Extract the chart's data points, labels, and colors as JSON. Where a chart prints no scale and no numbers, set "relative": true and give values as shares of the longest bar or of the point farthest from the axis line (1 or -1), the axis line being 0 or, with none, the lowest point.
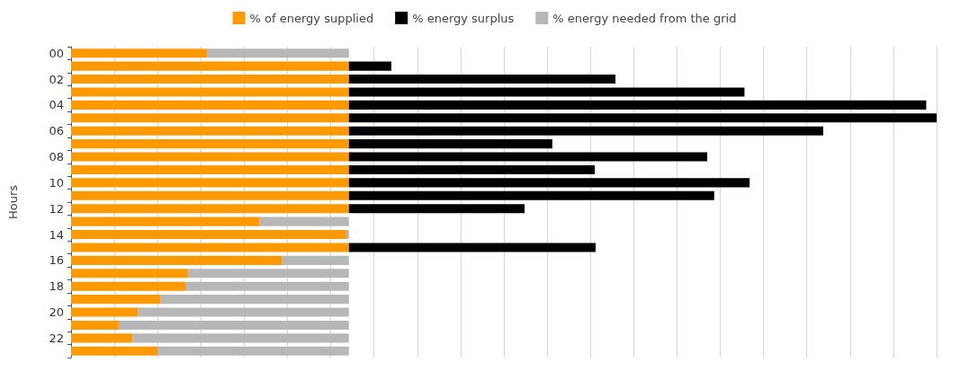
{
  "chart_data": {
    "type": "bar",
    "orientation": "horizontal",
    "stacked": true,
    "relative": true,
    "ylabel": "Hours",
    "legend": "top",
    "grid": "x",
    "categories": [
      "00",
      null,
      "02",
      null,
      "04",
      null,
      "06",
      null,
      "08",
      null,
      "10",
      null,
      "12",
      null,
      "14",
      null,
      "16",
      null,
      "18",
      null,
      "20",
      null,
      "22",
      null
    ],
    "series": [
      {
        "name": "% of energy supplied",
        "color": "#ff9900",
        "values": [
          0.157,
          0.321,
          0.321,
          0.321,
          0.321,
          0.321,
          0.321,
          0.321,
          0.321,
          0.321,
          0.321,
          0.321,
          0.321,
          0.218,
          0.318,
          0.321,
          0.244,
          0.135,
          0.132,
          0.103,
          0.077,
          0.055,
          0.071,
          0.1
        ]
      },
      {
        "name": "% energy surplus",
        "color": "#000000",
        "values": [
          null,
          0.049,
          0.308,
          0.457,
          0.667,
          0.679,
          0.548,
          0.235,
          0.414,
          0.284,
          0.463,
          0.422,
          0.203,
          null,
          null,
          0.285,
          null,
          null,
          null,
          null,
          null,
          null,
          null,
          null
        ]
      },
      {
        "name": "% energy needed from the grid",
        "color": "#b7b7b7",
        "values": [
          0.164,
          null,
          null,
          null,
          null,
          null,
          null,
          null,
          null,
          null,
          null,
          null,
          null,
          0.103,
          0.003,
          null,
          0.077,
          0.186,
          0.189,
          0.218,
          0.244,
          0.266,
          0.25,
          0.221
        ]
      }
    ]
  }
}
